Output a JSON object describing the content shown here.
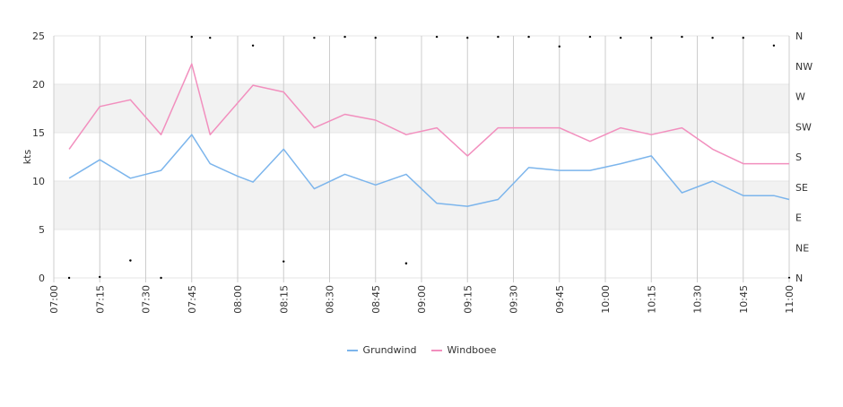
{
  "chart_data": {
    "type": "line",
    "ylabel": "kts",
    "ylim": [
      0,
      25
    ],
    "y_ticks": [
      "0",
      "5",
      "10",
      "15",
      "20",
      "25"
    ],
    "y2_ticks": [
      "N",
      "NE",
      "E",
      "SE",
      "S",
      "SW",
      "W",
      "NW",
      "N"
    ],
    "x_ticks": [
      "07:00",
      "07:15",
      "07:30",
      "07:45",
      "08:00",
      "08:15",
      "08:30",
      "08:45",
      "09:00",
      "09:15",
      "09:30",
      "09:45",
      "10:00",
      "10:15",
      "10:30",
      "10:45",
      "11:00"
    ],
    "x_range_minutes": [
      420,
      660
    ],
    "grid": true,
    "bands": [
      [
        5,
        10
      ],
      [
        15,
        20
      ]
    ],
    "legend_position": "bottom",
    "series": [
      {
        "name": "Grundwind",
        "color": "#7cb5ec",
        "x": [
          "07:05",
          "07:15",
          "07:25",
          "07:35",
          "07:45",
          "07:51",
          "08:00",
          "08:05",
          "08:15",
          "08:25",
          "08:35",
          "08:45",
          "08:55",
          "09:05",
          "09:15",
          "09:25",
          "09:35",
          "09:45",
          "09:55",
          "10:05",
          "10:15",
          "10:25",
          "10:35",
          "10:45",
          "10:55",
          "11:00"
        ],
        "values": [
          10.3,
          12.2,
          10.3,
          11.1,
          14.8,
          11.8,
          10.5,
          9.9,
          13.3,
          9.2,
          10.7,
          9.6,
          10.7,
          7.7,
          7.4,
          8.1,
          11.4,
          11.1,
          11.1,
          11.8,
          12.6,
          8.8,
          10.0,
          8.5,
          8.5,
          8.1
        ]
      },
      {
        "name": "Windboee",
        "color": "#f28fbe",
        "x": [
          "07:05",
          "07:15",
          "07:25",
          "07:35",
          "07:45",
          "07:51",
          "08:05",
          "08:15",
          "08:25",
          "08:35",
          "08:45",
          "08:55",
          "09:05",
          "09:15",
          "09:25",
          "09:35",
          "09:45",
          "09:55",
          "10:05",
          "10:15",
          "10:25",
          "10:35",
          "10:45",
          "10:55",
          "11:00"
        ],
        "values": [
          13.3,
          17.7,
          18.4,
          14.8,
          22.1,
          14.8,
          19.9,
          19.2,
          15.5,
          16.9,
          16.3,
          14.8,
          15.5,
          12.6,
          15.5,
          15.5,
          15.5,
          14.1,
          15.5,
          14.8,
          15.5,
          13.3,
          11.8,
          11.8,
          11.8
        ]
      }
    ],
    "direction_points": {
      "x": [
        "07:05",
        "07:15",
        "07:25",
        "07:35",
        "07:45",
        "07:51",
        "08:05",
        "08:25",
        "08:35",
        "08:45",
        "08:55",
        "09:05",
        "09:15",
        "09:25",
        "09:35",
        "09:45",
        "09:55",
        "10:05",
        "10:15",
        "10:25",
        "10:35",
        "10:45",
        "10:55",
        "11:00",
        "08:15",
        "08:55",
        "07:25"
      ],
      "y": [
        0,
        0.1,
        1.8,
        0,
        24.9,
        24.8,
        24.0,
        24.8,
        24.9,
        24.8,
        1.5,
        24.9,
        24.8,
        24.9,
        24.9,
        23.9,
        24.9,
        24.8,
        24.8,
        24.9,
        24.8,
        24.8,
        24.0,
        0,
        1.7,
        1.5,
        1.8
      ]
    }
  }
}
